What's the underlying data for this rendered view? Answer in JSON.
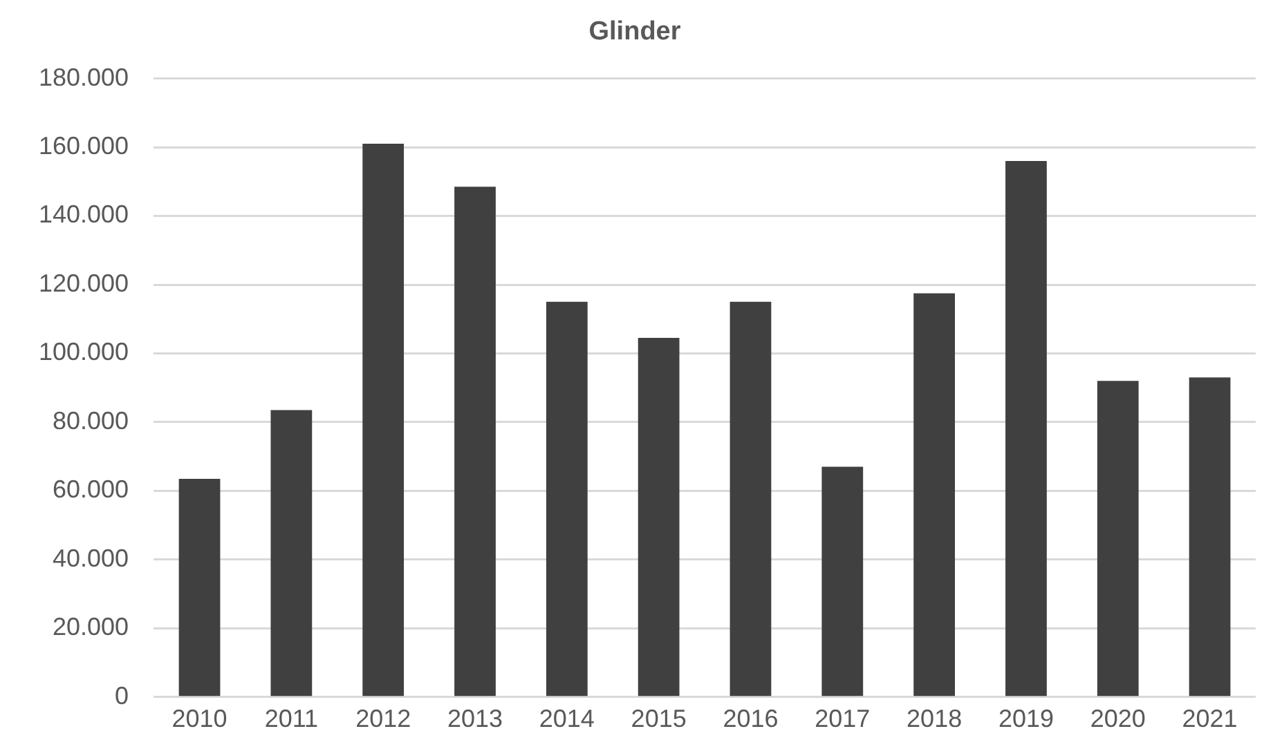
{
  "chart_data": {
    "type": "bar",
    "title": "Glinder",
    "categories": [
      "2010",
      "2011",
      "2012",
      "2013",
      "2014",
      "2015",
      "2016",
      "2017",
      "2018",
      "2019",
      "2020",
      "2021"
    ],
    "values": [
      63500,
      83500,
      161000,
      148500,
      115000,
      104500,
      115000,
      67000,
      117500,
      156000,
      92000,
      93000
    ],
    "color": "#404040",
    "ylim": [
      0,
      180000
    ],
    "yticks": [
      {
        "value": 0,
        "label": "0"
      },
      {
        "value": 20000,
        "label": "20.000"
      },
      {
        "value": 40000,
        "label": "40.000"
      },
      {
        "value": 60000,
        "label": "60.000"
      },
      {
        "value": 80000,
        "label": "80.000"
      },
      {
        "value": 100000,
        "label": "100.000"
      },
      {
        "value": 120000,
        "label": "120.000"
      },
      {
        "value": 140000,
        "label": "140.000"
      },
      {
        "value": 160000,
        "label": "160.000"
      },
      {
        "value": 180000,
        "label": "180.000"
      }
    ],
    "grid": "y"
  }
}
